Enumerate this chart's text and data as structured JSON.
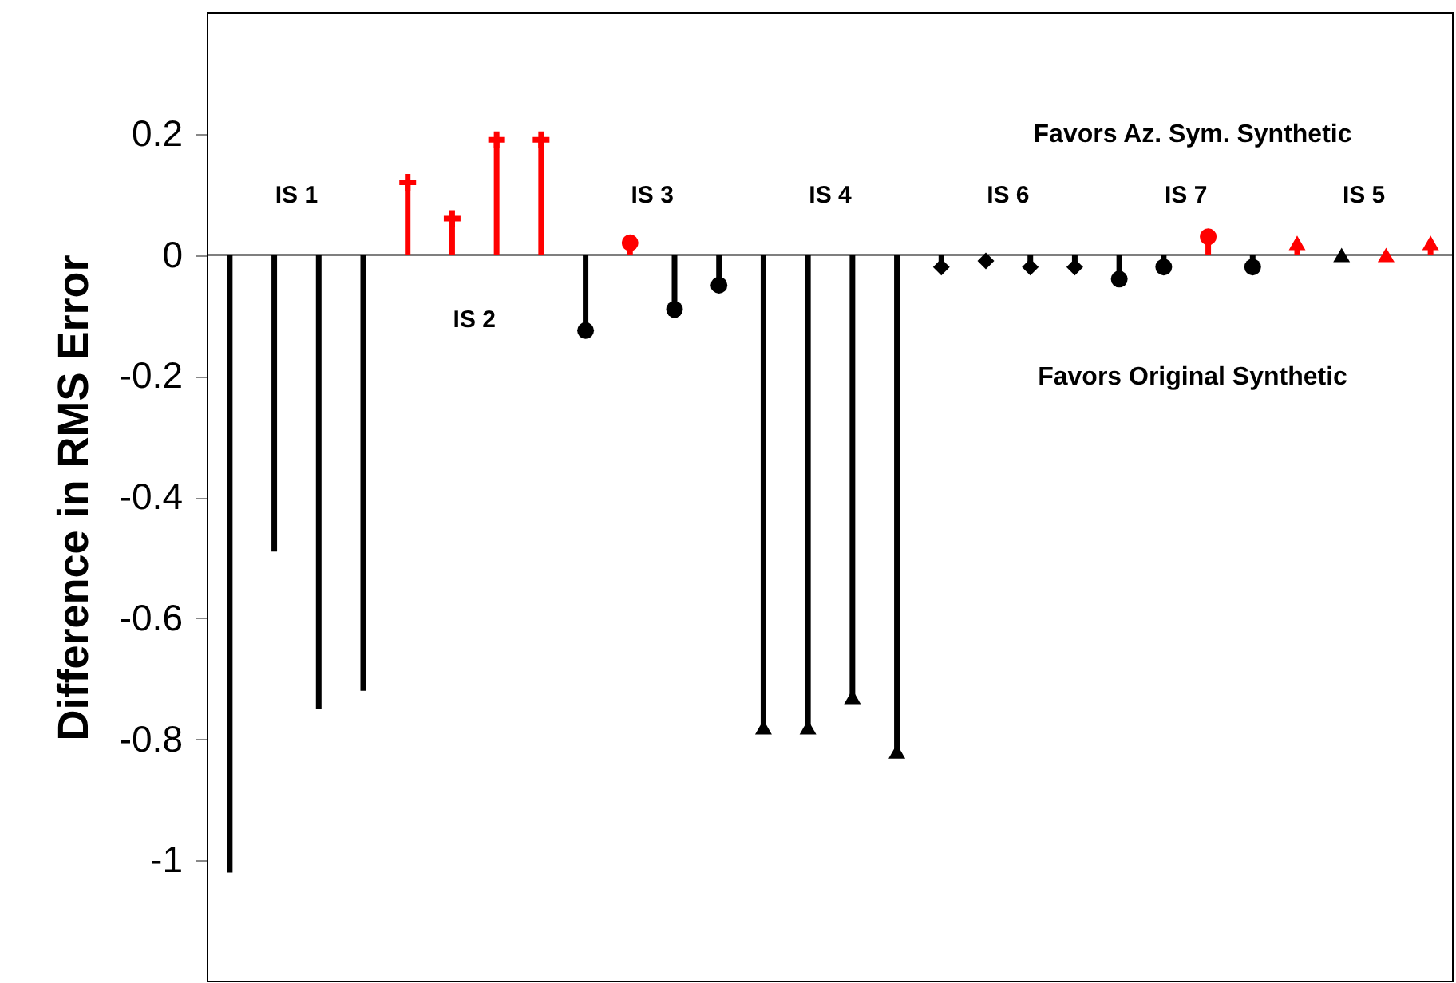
{
  "chart_data": {
    "type": "lollipop",
    "ylabel": "Difference in RMS Error",
    "categories": [
      null,
      null,
      null,
      null,
      null,
      null,
      null,
      null,
      null,
      null,
      null,
      null,
      null,
      null,
      null,
      null,
      null,
      null,
      null,
      null,
      null,
      null,
      null,
      null,
      null,
      null,
      null,
      null
    ],
    "ylim": [
      -1.2,
      0.4
    ],
    "yticks": [
      0.2,
      0,
      -0.2,
      -0.4,
      -0.6,
      -0.8,
      -1
    ],
    "tick_labels": "y",
    "grid": false,
    "ref_lines": [
      {
        "axis": "y",
        "value": 0,
        "color": "#000000"
      }
    ],
    "series": [
      {
        "type": "bar",
        "values": [
          -1.02,
          -0.49,
          -0.75,
          -0.72,
          null,
          null,
          null,
          null,
          null,
          null,
          null,
          null,
          null,
          null,
          null,
          null,
          null,
          null,
          null,
          null,
          null,
          null,
          null,
          null,
          null,
          null,
          null,
          null
        ],
        "color": "#000000"
      },
      {
        "values": [
          null,
          null,
          null,
          null,
          0.12,
          0.06,
          0.19,
          0.19,
          null,
          null,
          null,
          null,
          null,
          null,
          null,
          null,
          null,
          null,
          null,
          null,
          null,
          null,
          null,
          null,
          null,
          null,
          null,
          null
        ],
        "color": "#ff0000",
        "marker": "cross"
      },
      {
        "values": [
          null,
          null,
          null,
          null,
          null,
          null,
          null,
          null,
          -0.125,
          0.02,
          -0.09,
          -0.05,
          null,
          null,
          null,
          null,
          null,
          null,
          null,
          null,
          null,
          null,
          null,
          null,
          null,
          null,
          null,
          null
        ],
        "colors": [
          null,
          null,
          null,
          null,
          null,
          null,
          null,
          null,
          "#000000",
          "#ff0000",
          "#000000",
          "#000000",
          null,
          null,
          null,
          null,
          null,
          null,
          null,
          null,
          null,
          null,
          null,
          null,
          null,
          null,
          null,
          null
        ],
        "marker": "circle"
      },
      {
        "values": [
          null,
          null,
          null,
          null,
          null,
          null,
          null,
          null,
          null,
          null,
          null,
          null,
          -0.78,
          -0.78,
          -0.73,
          -0.82,
          null,
          null,
          null,
          null,
          null,
          null,
          null,
          null,
          null,
          null,
          null,
          null
        ],
        "color": "#000000",
        "marker": "triangle"
      },
      {
        "values": [
          null,
          null,
          null,
          null,
          null,
          null,
          null,
          null,
          null,
          null,
          null,
          null,
          null,
          null,
          null,
          null,
          -0.02,
          -0.01,
          -0.02,
          -0.02,
          null,
          null,
          null,
          null,
          null,
          null,
          null,
          null
        ],
        "color": "#000000",
        "marker": "diamond"
      },
      {
        "values": [
          null,
          null,
          null,
          null,
          null,
          null,
          null,
          null,
          null,
          null,
          null,
          null,
          null,
          null,
          null,
          null,
          null,
          null,
          null,
          null,
          -0.04,
          -0.02,
          0.03,
          -0.02,
          null,
          null,
          null,
          null
        ],
        "colors": [
          null,
          null,
          null,
          null,
          null,
          null,
          null,
          null,
          null,
          null,
          null,
          null,
          null,
          null,
          null,
          null,
          null,
          null,
          null,
          null,
          "#000000",
          "#000000",
          "#ff0000",
          "#000000",
          null,
          null,
          null,
          null
        ],
        "marker": "circle"
      },
      {
        "values": [
          null,
          null,
          null,
          null,
          null,
          null,
          null,
          null,
          null,
          null,
          null,
          null,
          null,
          null,
          null,
          null,
          null,
          null,
          null,
          null,
          null,
          null,
          null,
          null,
          0.02,
          0,
          0,
          0.02
        ],
        "colors": [
          null,
          null,
          null,
          null,
          null,
          null,
          null,
          null,
          null,
          null,
          null,
          null,
          null,
          null,
          null,
          null,
          null,
          null,
          null,
          null,
          null,
          null,
          null,
          null,
          "#ff0000",
          "#000000",
          "#ff0000",
          "#ff0000"
        ],
        "marker": "triangle"
      }
    ],
    "annotations": [
      "IS 1",
      "IS 2",
      "IS 3",
      "IS 4",
      "IS 6",
      "IS 7",
      "IS 5",
      "Favors Az. Sym. Synthetic",
      "Favors Original Synthetic"
    ]
  }
}
